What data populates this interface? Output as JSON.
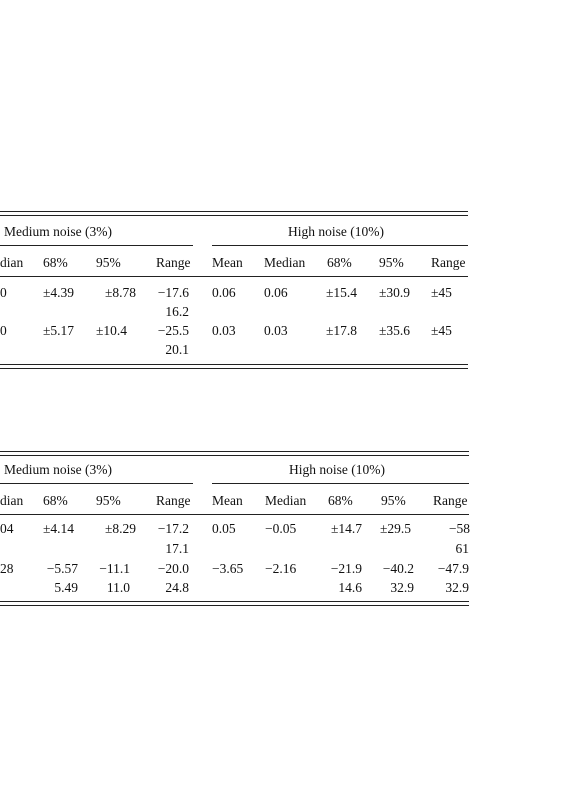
{
  "table1": {
    "groups": {
      "medium": "Medium noise (3%)",
      "high": "High noise (10%)"
    },
    "headers": {
      "median_partial": "dian",
      "p68": "68%",
      "p95": "95%",
      "range": "Range",
      "mean": "Mean",
      "median": "Median"
    },
    "rows": [
      {
        "lead": "0",
        "m68": "±4.39",
        "m95": "±8.78",
        "mrange": "−17.6",
        "mrange2": "16.2",
        "hmean": "0.06",
        "hmedian": "0.06",
        "h68": "±15.4",
        "h95": "±30.9",
        "hrange": "±45"
      },
      {
        "lead": "0",
        "m68": "±5.17",
        "m95": "±10.4",
        "mrange": "−25.5",
        "mrange2": "20.1",
        "hmean": "0.03",
        "hmedian": "0.03",
        "h68": "±17.8",
        "h95": "±35.6",
        "hrange": "±45"
      }
    ]
  },
  "table2": {
    "groups": {
      "medium": "Medium noise (3%)",
      "high": "High noise (10%)"
    },
    "headers": {
      "median_partial": "dian",
      "p68": "68%",
      "p95": "95%",
      "range": "Range",
      "mean": "Mean",
      "median": "Median"
    },
    "rows": [
      {
        "lead": "04",
        "m68": "±4.14",
        "m68b": "",
        "m95": "±8.29",
        "m95b": "",
        "mrange": "−17.2",
        "mrange2": "17.1",
        "hmean": "0.05",
        "hmedian": "−0.05",
        "h68": "±14.7",
        "h68b": "",
        "h95": "±29.5",
        "h95b": "",
        "hrange": "−58",
        "hrange2": "61"
      },
      {
        "lead": "28",
        "m68": "−5.57",
        "m68b": "5.49",
        "m95": "−11.1",
        "m95b": "11.0",
        "mrange": "−20.0",
        "mrange2": "24.8",
        "hmean": "−3.65",
        "hmedian": "−2.16",
        "h68": "−21.9",
        "h68b": "14.6",
        "h95": "−40.2",
        "h95b": "32.9",
        "hrange": "−47.9",
        "hrange2": "32.9"
      }
    ]
  }
}
